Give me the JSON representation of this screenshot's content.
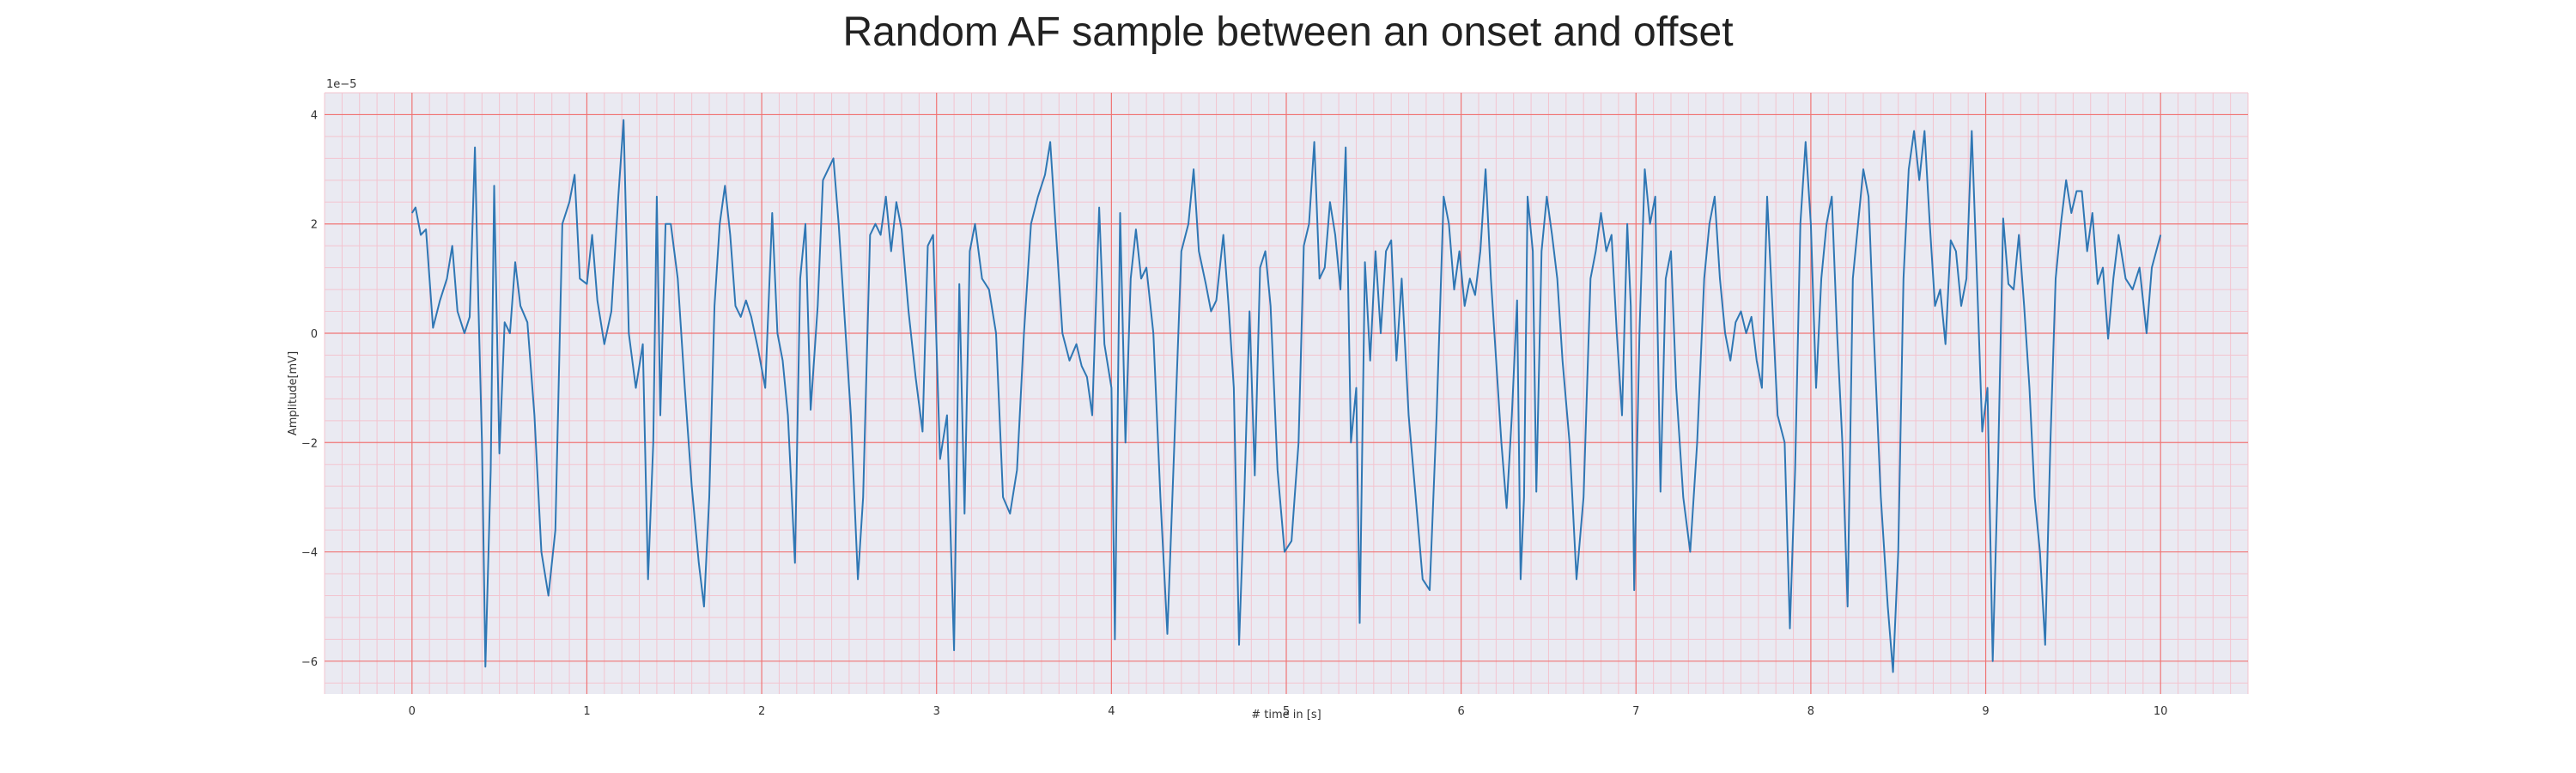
{
  "chart_data": {
    "type": "line",
    "title": "Random AF sample between an onset and offset",
    "xlabel": "# time in [s]",
    "ylabel": "Amplitude[mV]",
    "y_offset_label": "1e−5",
    "y_multiplier": 1e-05,
    "xlim": [
      -0.5,
      10.5
    ],
    "ylim": [
      -6.6,
      4.4
    ],
    "x_ticks": [
      0,
      1,
      2,
      3,
      4,
      5,
      6,
      7,
      8,
      9,
      10
    ],
    "x_tick_labels": [
      "0",
      "1",
      "2",
      "3",
      "4",
      "5",
      "6",
      "7",
      "8",
      "9",
      "10"
    ],
    "y_ticks": [
      -6,
      -4,
      -2,
      0,
      2,
      4
    ],
    "y_tick_labels": [
      "−6",
      "−4",
      "−2",
      "0",
      "2",
      "4"
    ],
    "grid": "major red, minor pink",
    "colors": {
      "line": "#2f77b4",
      "background": "#eaeaf2",
      "major_grid": "#f07474",
      "minor_grid": "#f3c4cf"
    },
    "series": [
      {
        "values": [
          [
            0.0,
            2.2
          ],
          [
            0.02,
            2.3
          ],
          [
            0.05,
            1.8
          ],
          [
            0.08,
            1.9
          ],
          [
            0.12,
            0.1
          ],
          [
            0.16,
            0.6
          ],
          [
            0.2,
            1.0
          ],
          [
            0.23,
            1.6
          ],
          [
            0.26,
            0.4
          ],
          [
            0.3,
            0.0
          ],
          [
            0.33,
            0.3
          ],
          [
            0.36,
            3.4
          ],
          [
            0.38,
            0.5
          ],
          [
            0.4,
            -2.0
          ],
          [
            0.42,
            -6.1
          ],
          [
            0.45,
            -2.5
          ],
          [
            0.47,
            2.7
          ],
          [
            0.5,
            -2.2
          ],
          [
            0.53,
            0.2
          ],
          [
            0.56,
            0.0
          ],
          [
            0.59,
            1.3
          ],
          [
            0.62,
            0.5
          ],
          [
            0.66,
            0.2
          ],
          [
            0.7,
            -1.5
          ],
          [
            0.74,
            -4.0
          ],
          [
            0.78,
            -4.8
          ],
          [
            0.82,
            -3.6
          ],
          [
            0.86,
            2.0
          ],
          [
            0.9,
            2.4
          ],
          [
            0.93,
            2.9
          ],
          [
            0.96,
            1.0
          ],
          [
            1.0,
            0.9
          ],
          [
            1.03,
            1.8
          ],
          [
            1.06,
            0.6
          ],
          [
            1.1,
            -0.2
          ],
          [
            1.14,
            0.4
          ],
          [
            1.18,
            2.5
          ],
          [
            1.21,
            3.9
          ],
          [
            1.24,
            0.0
          ],
          [
            1.28,
            -1.0
          ],
          [
            1.32,
            -0.2
          ],
          [
            1.35,
            -4.5
          ],
          [
            1.38,
            -2.0
          ],
          [
            1.4,
            2.5
          ],
          [
            1.42,
            -1.5
          ],
          [
            1.45,
            2.0
          ],
          [
            1.48,
            2.0
          ],
          [
            1.52,
            1.0
          ],
          [
            1.56,
            -1.0
          ],
          [
            1.6,
            -2.8
          ],
          [
            1.64,
            -4.2
          ],
          [
            1.67,
            -5.0
          ],
          [
            1.7,
            -3.0
          ],
          [
            1.73,
            0.5
          ],
          [
            1.76,
            2.0
          ],
          [
            1.79,
            2.7
          ],
          [
            1.82,
            1.8
          ],
          [
            1.85,
            0.5
          ],
          [
            1.88,
            0.3
          ],
          [
            1.91,
            0.6
          ],
          [
            1.94,
            0.3
          ],
          [
            1.98,
            -0.3
          ],
          [
            2.02,
            -1.0
          ],
          [
            2.06,
            2.2
          ],
          [
            2.09,
            0.0
          ],
          [
            2.12,
            -0.5
          ],
          [
            2.15,
            -1.5
          ],
          [
            2.19,
            -4.2
          ],
          [
            2.22,
            1.0
          ],
          [
            2.25,
            2.0
          ],
          [
            2.28,
            -1.4
          ],
          [
            2.32,
            0.5
          ],
          [
            2.35,
            2.8
          ],
          [
            2.38,
            3.0
          ],
          [
            2.41,
            3.2
          ],
          [
            2.44,
            2.0
          ],
          [
            2.48,
            0.0
          ],
          [
            2.51,
            -1.5
          ],
          [
            2.55,
            -4.5
          ],
          [
            2.58,
            -3.0
          ],
          [
            2.62,
            1.8
          ],
          [
            2.65,
            2.0
          ],
          [
            2.68,
            1.8
          ],
          [
            2.71,
            2.5
          ],
          [
            2.74,
            1.5
          ],
          [
            2.77,
            2.4
          ],
          [
            2.8,
            1.9
          ],
          [
            2.84,
            0.4
          ],
          [
            2.88,
            -0.8
          ],
          [
            2.92,
            -1.8
          ],
          [
            2.95,
            1.6
          ],
          [
            2.98,
            1.8
          ],
          [
            3.02,
            -2.3
          ],
          [
            3.06,
            -1.5
          ],
          [
            3.1,
            -5.8
          ],
          [
            3.13,
            0.9
          ],
          [
            3.16,
            -3.3
          ],
          [
            3.19,
            1.5
          ],
          [
            3.22,
            2.0
          ],
          [
            3.26,
            1.0
          ],
          [
            3.3,
            0.8
          ],
          [
            3.34,
            0.0
          ],
          [
            3.38,
            -3.0
          ],
          [
            3.42,
            -3.3
          ],
          [
            3.46,
            -2.5
          ],
          [
            3.5,
            0.0
          ],
          [
            3.54,
            2.0
          ],
          [
            3.58,
            2.5
          ],
          [
            3.62,
            2.9
          ],
          [
            3.65,
            3.5
          ],
          [
            3.68,
            2.0
          ],
          [
            3.72,
            0.0
          ],
          [
            3.76,
            -0.5
          ],
          [
            3.8,
            -0.2
          ],
          [
            3.83,
            -0.6
          ],
          [
            3.86,
            -0.8
          ],
          [
            3.89,
            -1.5
          ],
          [
            3.93,
            2.3
          ],
          [
            3.96,
            -0.2
          ],
          [
            4.0,
            -1.0
          ],
          [
            4.02,
            -5.6
          ],
          [
            4.05,
            2.2
          ],
          [
            4.08,
            -2.0
          ],
          [
            4.11,
            1.0
          ],
          [
            4.14,
            1.9
          ],
          [
            4.17,
            1.0
          ],
          [
            4.2,
            1.2
          ],
          [
            4.24,
            0.0
          ],
          [
            4.28,
            -3.0
          ],
          [
            4.32,
            -5.5
          ],
          [
            4.36,
            -2.0
          ],
          [
            4.4,
            1.5
          ],
          [
            4.44,
            2.0
          ],
          [
            4.47,
            3.0
          ],
          [
            4.5,
            1.5
          ],
          [
            4.54,
            0.9
          ],
          [
            4.57,
            0.4
          ],
          [
            4.6,
            0.6
          ],
          [
            4.64,
            1.8
          ],
          [
            4.67,
            0.5
          ],
          [
            4.7,
            -1.0
          ],
          [
            4.73,
            -5.7
          ],
          [
            4.76,
            -3.0
          ],
          [
            4.79,
            0.4
          ],
          [
            4.82,
            -2.6
          ],
          [
            4.85,
            1.2
          ],
          [
            4.88,
            1.5
          ],
          [
            4.91,
            0.5
          ],
          [
            4.95,
            -2.5
          ],
          [
            4.99,
            -4.0
          ],
          [
            5.03,
            -3.8
          ],
          [
            5.07,
            -2.0
          ],
          [
            5.1,
            1.6
          ],
          [
            5.13,
            2.0
          ],
          [
            5.16,
            3.5
          ],
          [
            5.19,
            1.0
          ],
          [
            5.22,
            1.2
          ],
          [
            5.25,
            2.4
          ],
          [
            5.28,
            1.8
          ],
          [
            5.31,
            0.8
          ],
          [
            5.34,
            3.4
          ],
          [
            5.37,
            -2.0
          ],
          [
            5.4,
            -1.0
          ],
          [
            5.42,
            -5.3
          ],
          [
            5.45,
            1.3
          ],
          [
            5.48,
            -0.5
          ],
          [
            5.51,
            1.5
          ],
          [
            5.54,
            0.0
          ],
          [
            5.57,
            1.5
          ],
          [
            5.6,
            1.7
          ],
          [
            5.63,
            -0.5
          ],
          [
            5.66,
            1.0
          ],
          [
            5.7,
            -1.5
          ],
          [
            5.74,
            -3.0
          ],
          [
            5.78,
            -4.5
          ],
          [
            5.82,
            -4.7
          ],
          [
            5.86,
            -1.5
          ],
          [
            5.9,
            2.5
          ],
          [
            5.93,
            2.0
          ],
          [
            5.96,
            0.8
          ],
          [
            5.99,
            1.5
          ],
          [
            6.02,
            0.5
          ],
          [
            6.05,
            1.0
          ],
          [
            6.08,
            0.7
          ],
          [
            6.11,
            1.5
          ],
          [
            6.14,
            3.0
          ],
          [
            6.17,
            1.0
          ],
          [
            6.2,
            -0.5
          ],
          [
            6.23,
            -2.0
          ],
          [
            6.26,
            -3.2
          ],
          [
            6.29,
            -1.5
          ],
          [
            6.32,
            0.6
          ],
          [
            6.34,
            -4.5
          ],
          [
            6.36,
            -3.0
          ],
          [
            6.38,
            2.5
          ],
          [
            6.41,
            1.5
          ],
          [
            6.43,
            -2.9
          ],
          [
            6.46,
            1.5
          ],
          [
            6.49,
            2.5
          ],
          [
            6.52,
            1.8
          ],
          [
            6.55,
            1.0
          ],
          [
            6.58,
            -0.5
          ],
          [
            6.62,
            -2.0
          ],
          [
            6.66,
            -4.5
          ],
          [
            6.7,
            -3.0
          ],
          [
            6.74,
            1.0
          ],
          [
            6.77,
            1.5
          ],
          [
            6.8,
            2.2
          ],
          [
            6.83,
            1.5
          ],
          [
            6.86,
            1.8
          ],
          [
            6.89,
            0.0
          ],
          [
            6.92,
            -1.5
          ],
          [
            6.95,
            2.0
          ],
          [
            6.97,
            0.5
          ],
          [
            6.99,
            -4.7
          ],
          [
            7.02,
            0.0
          ],
          [
            7.05,
            3.0
          ],
          [
            7.08,
            2.0
          ],
          [
            7.11,
            2.5
          ],
          [
            7.14,
            -2.9
          ],
          [
            7.17,
            1.0
          ],
          [
            7.2,
            1.5
          ],
          [
            7.23,
            -1.0
          ],
          [
            7.27,
            -3.0
          ],
          [
            7.31,
            -4.0
          ],
          [
            7.35,
            -2.0
          ],
          [
            7.39,
            1.0
          ],
          [
            7.42,
            2.0
          ],
          [
            7.45,
            2.5
          ],
          [
            7.48,
            1.0
          ],
          [
            7.51,
            0.0
          ],
          [
            7.54,
            -0.5
          ],
          [
            7.57,
            0.2
          ],
          [
            7.6,
            0.4
          ],
          [
            7.63,
            0.0
          ],
          [
            7.66,
            0.3
          ],
          [
            7.69,
            -0.5
          ],
          [
            7.72,
            -1.0
          ],
          [
            7.75,
            2.5
          ],
          [
            7.78,
            0.5
          ],
          [
            7.81,
            -1.5
          ],
          [
            7.85,
            -2.0
          ],
          [
            7.88,
            -5.4
          ],
          [
            7.91,
            -2.5
          ],
          [
            7.94,
            2.0
          ],
          [
            7.97,
            3.5
          ],
          [
            8.0,
            2.0
          ],
          [
            8.03,
            -1.0
          ],
          [
            8.06,
            1.0
          ],
          [
            8.09,
            2.0
          ],
          [
            8.12,
            2.5
          ],
          [
            8.15,
            0.0
          ],
          [
            8.18,
            -2.0
          ],
          [
            8.21,
            -5.0
          ],
          [
            8.24,
            1.0
          ],
          [
            8.27,
            2.0
          ],
          [
            8.3,
            3.0
          ],
          [
            8.33,
            2.5
          ],
          [
            8.36,
            0.0
          ],
          [
            8.4,
            -3.0
          ],
          [
            8.44,
            -5.0
          ],
          [
            8.47,
            -6.2
          ],
          [
            8.5,
            -4.0
          ],
          [
            8.53,
            1.0
          ],
          [
            8.56,
            3.0
          ],
          [
            8.59,
            3.7
          ],
          [
            8.62,
            2.8
          ],
          [
            8.65,
            3.7
          ],
          [
            8.68,
            2.0
          ],
          [
            8.71,
            0.5
          ],
          [
            8.74,
            0.8
          ],
          [
            8.77,
            -0.2
          ],
          [
            8.8,
            1.7
          ],
          [
            8.83,
            1.5
          ],
          [
            8.86,
            0.5
          ],
          [
            8.89,
            1.0
          ],
          [
            8.92,
            3.7
          ],
          [
            8.95,
            1.0
          ],
          [
            8.98,
            -1.8
          ],
          [
            9.01,
            -1.0
          ],
          [
            9.04,
            -6.0
          ],
          [
            9.07,
            -2.5
          ],
          [
            9.1,
            2.1
          ],
          [
            9.13,
            0.9
          ],
          [
            9.16,
            0.8
          ],
          [
            9.19,
            1.8
          ],
          [
            9.22,
            0.5
          ],
          [
            9.25,
            -1.0
          ],
          [
            9.28,
            -3.0
          ],
          [
            9.31,
            -4.0
          ],
          [
            9.34,
            -5.7
          ],
          [
            9.37,
            -2.0
          ],
          [
            9.4,
            1.0
          ],
          [
            9.43,
            2.0
          ],
          [
            9.46,
            2.8
          ],
          [
            9.49,
            2.2
          ],
          [
            9.52,
            2.6
          ],
          [
            9.55,
            2.6
          ],
          [
            9.58,
            1.5
          ],
          [
            9.61,
            2.2
          ],
          [
            9.64,
            0.9
          ],
          [
            9.67,
            1.2
          ],
          [
            9.7,
            -0.1
          ],
          [
            9.73,
            1.0
          ],
          [
            9.76,
            1.8
          ],
          [
            9.8,
            1.0
          ],
          [
            9.84,
            0.8
          ],
          [
            9.88,
            1.2
          ],
          [
            9.92,
            0.0
          ],
          [
            9.95,
            1.2
          ],
          [
            10.0,
            1.8
          ]
        ]
      }
    ]
  }
}
